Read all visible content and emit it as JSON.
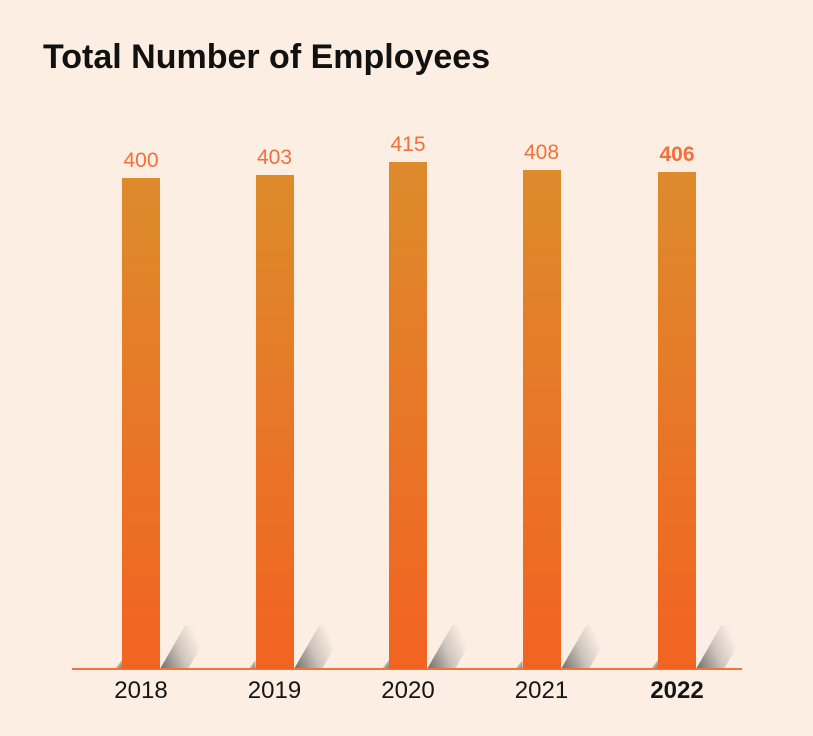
{
  "title": "Total Number of Employees",
  "chart_data": {
    "type": "bar",
    "title": "Total Number of Employees",
    "categories": [
      "2018",
      "2019",
      "2020",
      "2021",
      "2022"
    ],
    "values": [
      400,
      403,
      415,
      408,
      406
    ],
    "value_labels": [
      "400",
      "403",
      "415",
      "408",
      "406"
    ],
    "highlight_category": "2022",
    "xlabel": "",
    "ylabel": "",
    "grid": false,
    "legend": false,
    "axis": "single orange baseline, no y-axis, non-zero-based bar scale",
    "bar_style": "vertical bars with orange gradient and gray 3D drop shadow cast to the lower right"
  },
  "colors": {
    "background": "#fceee2",
    "title": "#111111",
    "bar_gradient_top": "#dd8b2c",
    "bar_gradient_bottom": "#f26322",
    "value_label": "#f1703c",
    "year_label": "#161616",
    "axis_line": "#f0753b"
  }
}
